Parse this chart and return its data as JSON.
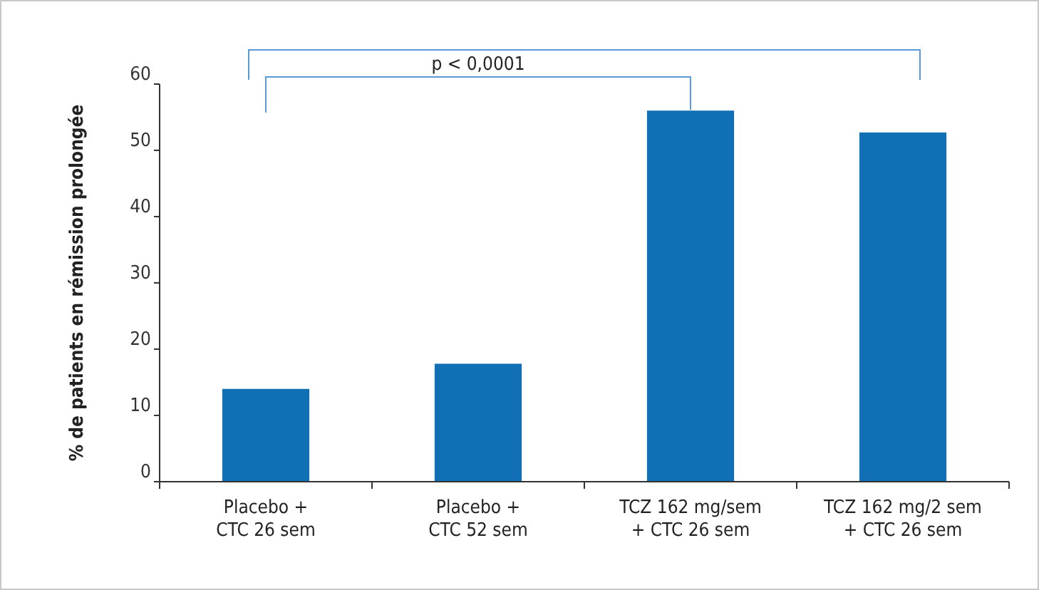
{
  "chart_data": {
    "type": "bar",
    "ylabel": "% de patients en rémission prolongée",
    "categories": [
      "Placebo +\nCTC 26 sem",
      "Placebo +\nCTC 52 sem",
      "TCZ 162 mg/sem\n+ CTC 26 sem",
      "TCZ 162 mg/2 sem\n+ CTC 26 sem"
    ],
    "values": [
      14,
      17.8,
      56,
      52.7
    ],
    "color": "#1170b5",
    "ylim": [
      0,
      60
    ],
    "yticks": [
      0,
      10,
      20,
      30,
      40,
      50,
      60
    ],
    "grid": false,
    "annotations": [
      "p < 0,0001"
    ]
  }
}
